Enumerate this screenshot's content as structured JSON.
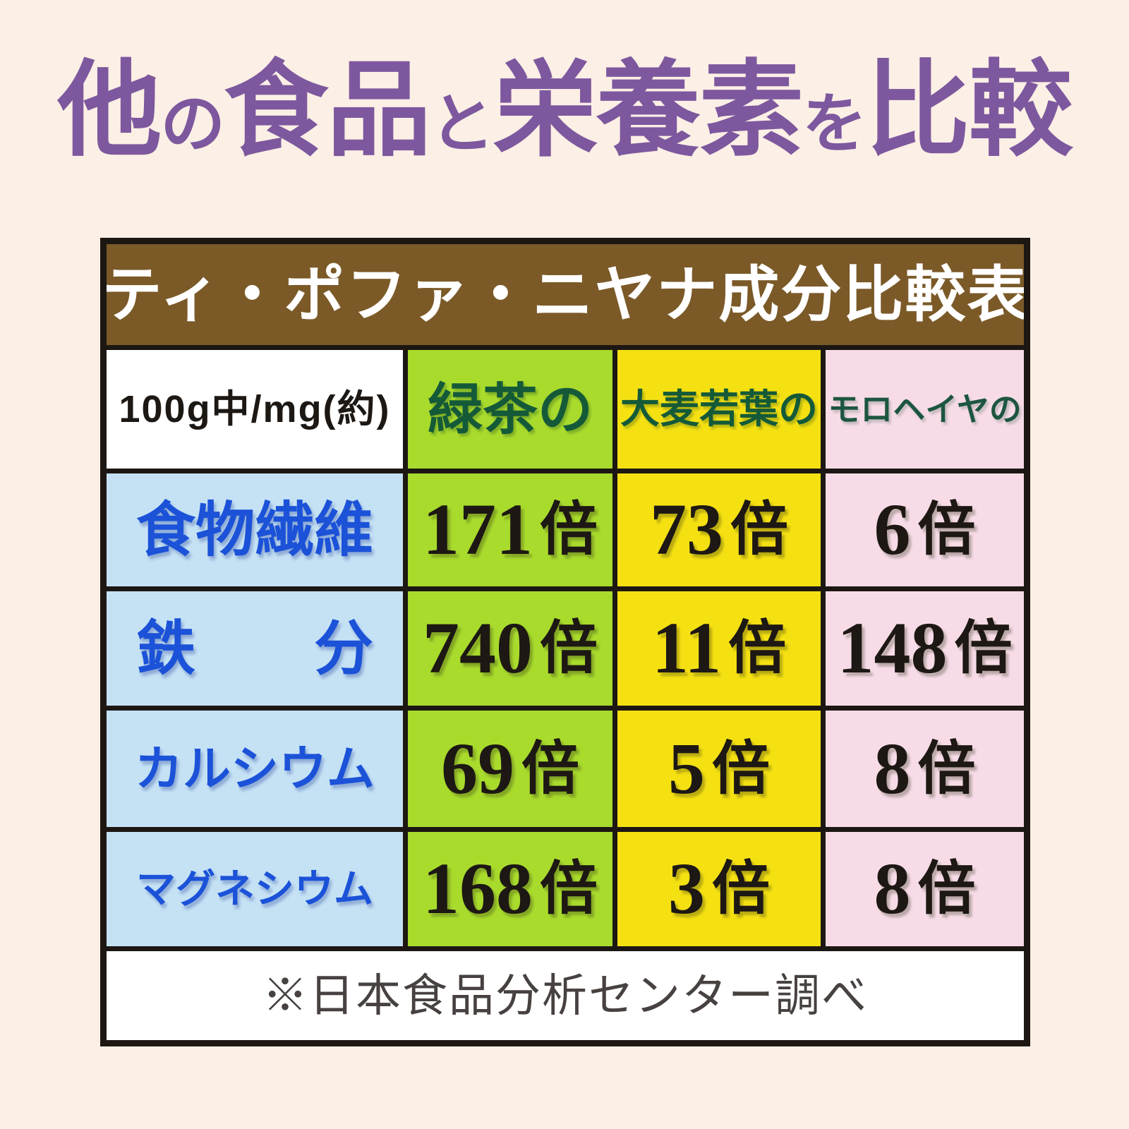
{
  "page": {
    "background_color": "#fcefe5"
  },
  "title": {
    "full_text": "他の食品と栄養素を比較",
    "color": "#7d589e",
    "segments": [
      {
        "text": "他",
        "small": false
      },
      {
        "text": "の",
        "small": true
      },
      {
        "text": "食品",
        "small": false
      },
      {
        "text": "と",
        "small": true
      },
      {
        "text": "栄養素",
        "small": false
      },
      {
        "text": "を",
        "small": true
      },
      {
        "text": "比較",
        "small": false
      }
    ]
  },
  "table": {
    "title": "ティ・ポファ・ニヤナ成分比較表",
    "title_background": "#7b5a28",
    "border_color": "#1d1713",
    "unit": "倍",
    "columns": [
      {
        "label": "100g中/mg(約)",
        "background": "#ffffff",
        "text_color": "#1d1813"
      },
      {
        "label": "緑茶の",
        "background": "#a9db2d",
        "text_color": "#155a38"
      },
      {
        "label": "大麦若葉の",
        "background": "#f5e112",
        "text_color": "#155a38"
      },
      {
        "label": "モロヘイヤの",
        "background": "#f7dce8",
        "text_color": "#1d5640"
      }
    ],
    "row_label_background": "#c5e2f5",
    "row_label_color": "#1b52d8",
    "rows": [
      {
        "label": "食物繊維",
        "values": [
          "171",
          "73",
          "6"
        ]
      },
      {
        "label": "鉄　　分",
        "values": [
          "740",
          "11",
          "148"
        ]
      },
      {
        "label": "カルシウム",
        "values": [
          "69",
          "5",
          "8"
        ]
      },
      {
        "label": "マグネシウム",
        "values": [
          "168",
          "3",
          "8"
        ]
      }
    ],
    "footnote": "※日本食品分析センター調べ"
  },
  "chart_data": {
    "type": "table",
    "title": "ティ・ポファ・ニヤナ成分比較表",
    "page_title": "他の食品と栄養素を比較",
    "unit_note": "100g中/mg(約)",
    "unit_suffix": "倍",
    "categories": [
      "食物繊維",
      "鉄分",
      "カルシウム",
      "マグネシウム"
    ],
    "series": [
      {
        "name": "緑茶の",
        "values": [
          171,
          740,
          69,
          168
        ]
      },
      {
        "name": "大麦若葉の",
        "values": [
          73,
          11,
          5,
          3
        ]
      },
      {
        "name": "モロヘイヤの",
        "values": [
          6,
          148,
          8,
          8
        ]
      }
    ],
    "footnote": "※日本食品分析センター調べ"
  }
}
